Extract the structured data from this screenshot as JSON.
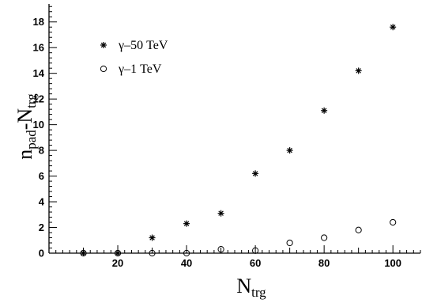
{
  "chart_data": {
    "type": "scatter",
    "xlim": [
      0,
      108
    ],
    "ylim": [
      0,
      19.4
    ],
    "xticks": [
      20,
      40,
      60,
      80,
      100
    ],
    "yticks": [
      0,
      2,
      4,
      6,
      8,
      10,
      12,
      14,
      16,
      18
    ],
    "xlabel_main": "N",
    "xlabel_sub": "trg",
    "ylabel_parts": [
      {
        "text": "n",
        "sub": false
      },
      {
        "text": "pad",
        "sub": true
      },
      {
        "text": "-N",
        "sub": false
      },
      {
        "text": "trg",
        "sub": true
      }
    ],
    "legend_position": "top-left",
    "series": [
      {
        "name": "γ–50 TeV",
        "marker": "asterisk",
        "x": [
          10,
          20,
          30,
          40,
          50,
          60,
          70,
          80,
          90,
          100
        ],
        "y": [
          0.0,
          0.0,
          1.2,
          2.3,
          3.1,
          6.2,
          8.0,
          11.1,
          14.2,
          17.6
        ]
      },
      {
        "name": "γ–1 TeV",
        "marker": "circle",
        "x": [
          10,
          20,
          30,
          40,
          50,
          60,
          70,
          80,
          90,
          100
        ],
        "y": [
          0.0,
          0.0,
          0.0,
          0.0,
          0.3,
          0.2,
          0.8,
          1.2,
          1.8,
          2.4
        ]
      }
    ]
  }
}
